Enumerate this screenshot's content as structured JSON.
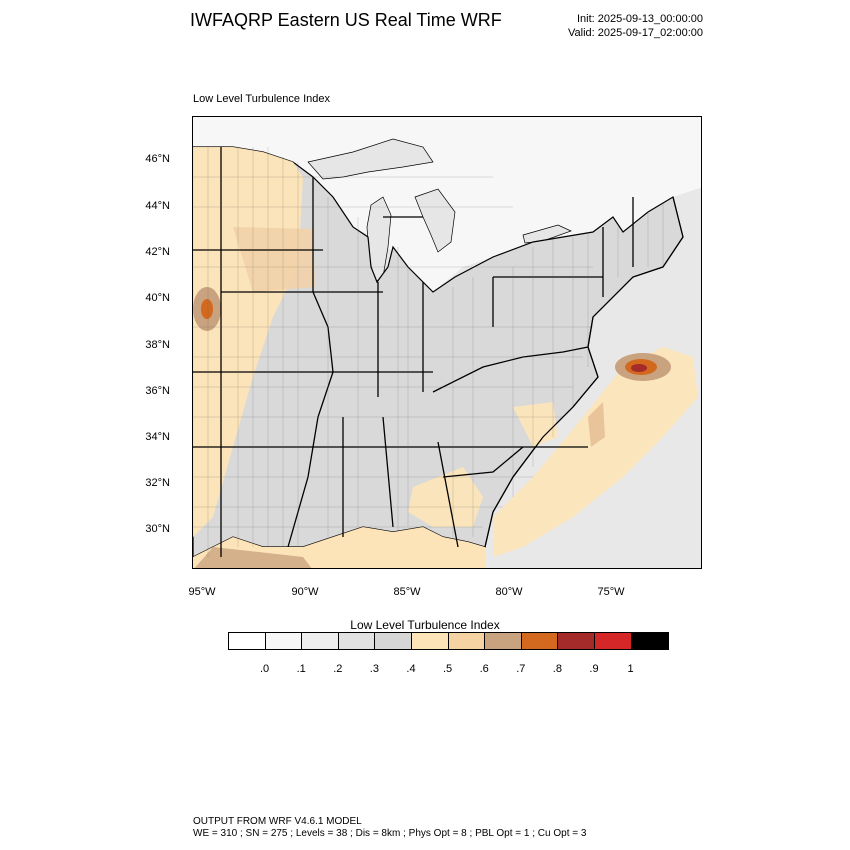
{
  "header": {
    "title": "IWFAQRP Eastern US Real Time WRF",
    "init": "Init: 2025-09-13_00:00:00",
    "valid": "Valid: 2025-09-17_02:00:00"
  },
  "plot": {
    "title": "Low Level Turbulence Index",
    "lat_labels": [
      "46°N",
      "44°N",
      "42°N",
      "40°N",
      "38°N",
      "36°N",
      "34°N",
      "32°N",
      "30°N"
    ],
    "lon_labels": [
      "95°W",
      "90°W",
      "85°W",
      "80°W",
      "75°W"
    ],
    "colors": {
      "land_gray": "#d9d9d9",
      "water_light": "#f2f2f2",
      "water_mid": "#e4e4e4",
      "pale_orange": "#fde4b8",
      "tan": "#c9a27f",
      "orange": "#d2691e",
      "brown_red": "#a52a2a",
      "red": "#d62728"
    }
  },
  "colorbar": {
    "title": "Low Level Turbulence Index",
    "colors": [
      "#ffffff",
      "#f7f7f7",
      "#eeeeee",
      "#e2e2e2",
      "#d6d6d6",
      "#fde4b8",
      "#f5d3a3",
      "#c9a27f",
      "#d2691e",
      "#a52a2a",
      "#d62728",
      "#000000"
    ],
    "labels": [
      ".0",
      ".1",
      ".2",
      ".3",
      ".4",
      ".5",
      ".6",
      ".7",
      ".8",
      ".9",
      "1"
    ]
  },
  "footer": {
    "line1": "OUTPUT FROM WRF V4.6.1 MODEL",
    "line2": "WE = 310 ; SN = 275 ; Levels = 38 ; Dis = 8km ; Phys Opt = 8 ; PBL Opt = 1 ; Cu Opt = 3"
  }
}
